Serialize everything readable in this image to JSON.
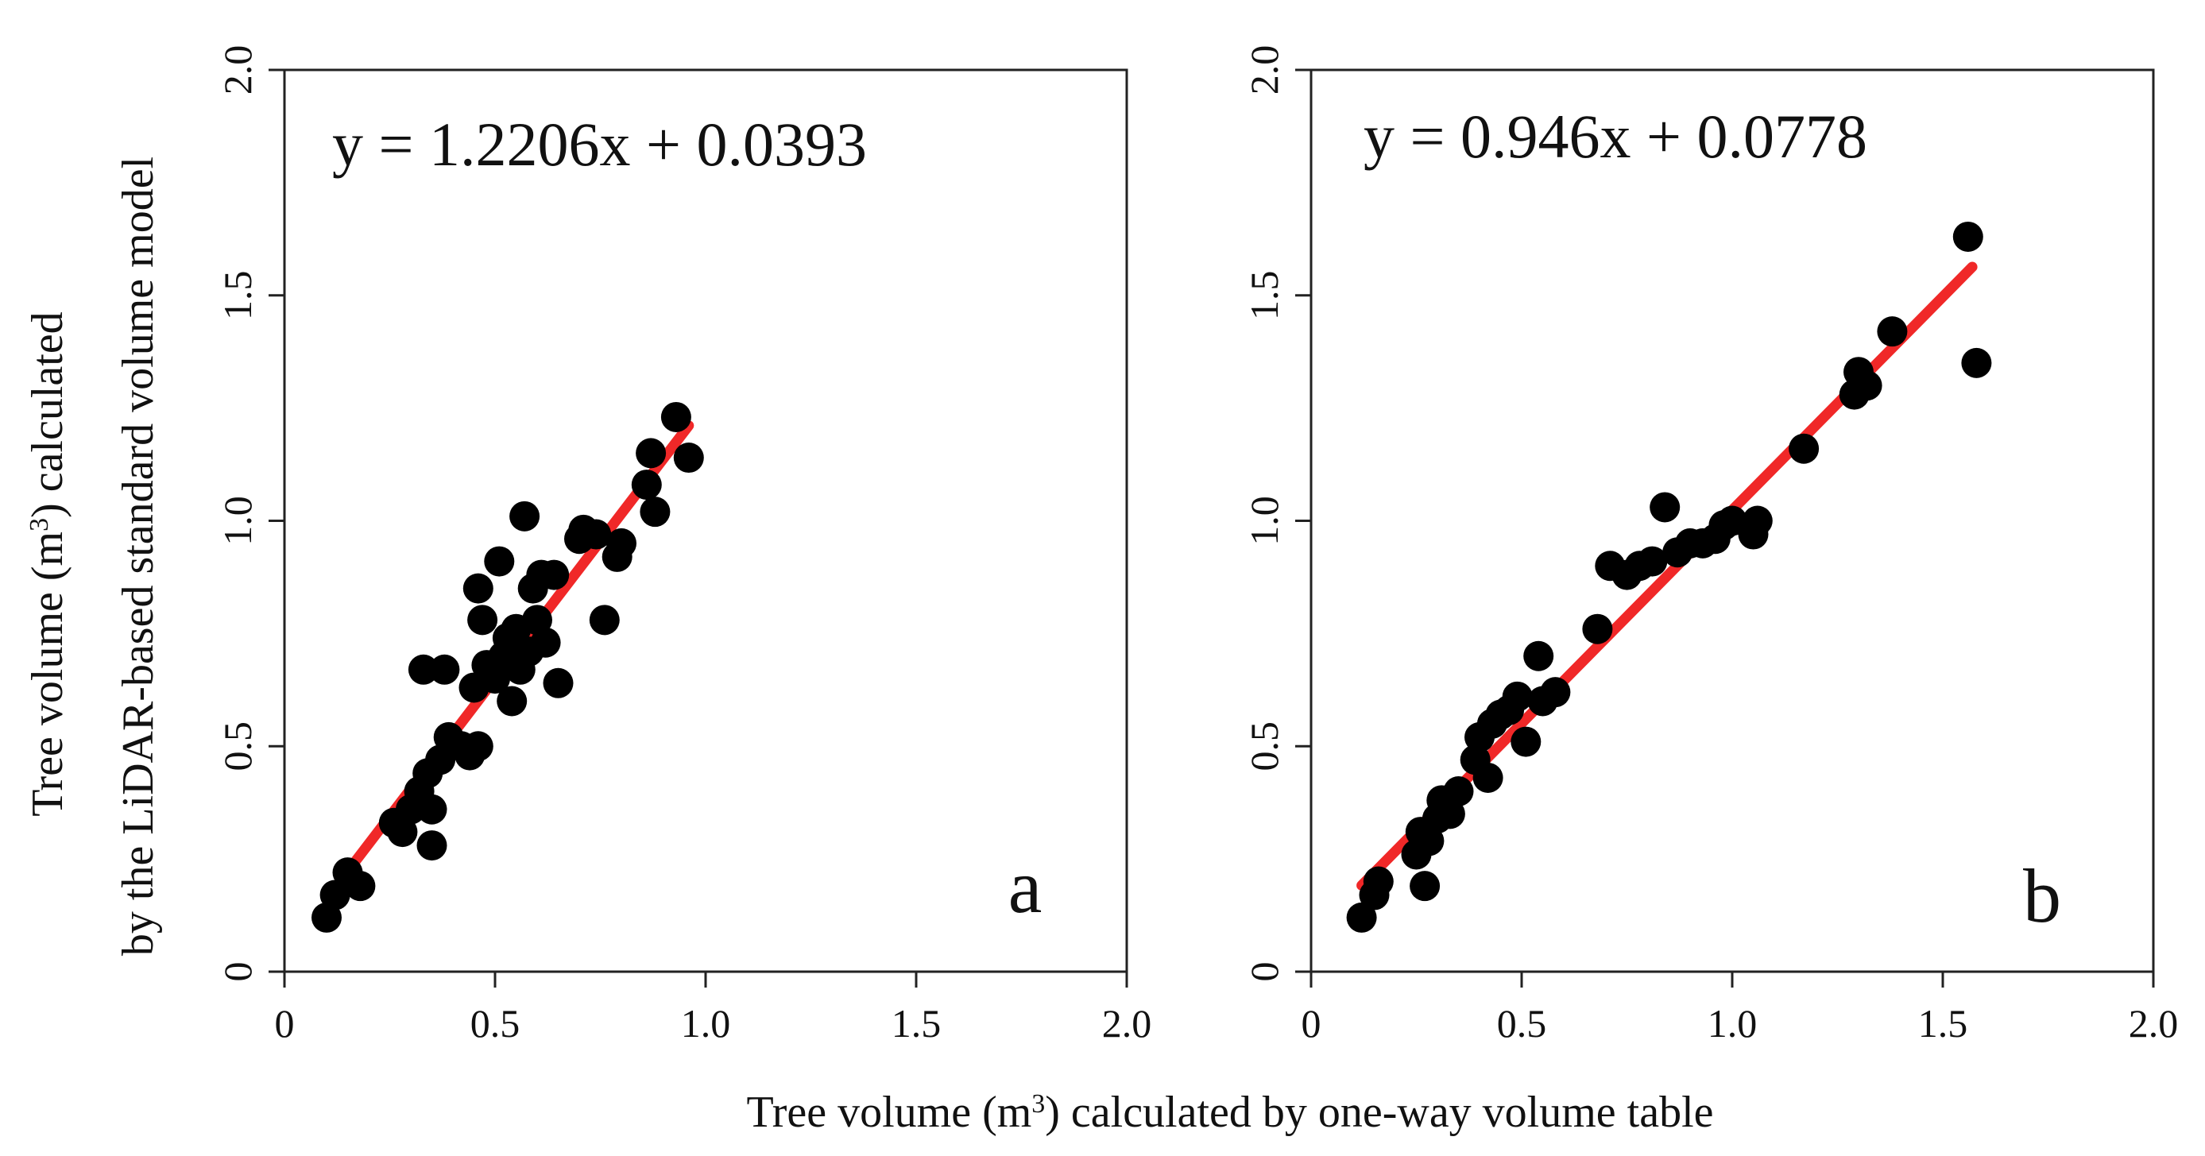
{
  "axes": {
    "xlabel_prefix": "Tree volume (m",
    "xlabel_sup": "3",
    "xlabel_suffix": ") calculated by one-way volume table",
    "ylabel_line1_prefix": "Tree volume (m",
    "ylabel_line1_sup": "3",
    "ylabel_line1_suffix": ") calculated",
    "ylabel_line2": "by the LiDAR-based standard volume model",
    "x_ticks": [
      "0",
      "0.5",
      "1.0",
      "1.5",
      "2.0"
    ],
    "y_ticks": [
      "0",
      "0.5",
      "1.0",
      "1.5",
      "2.0"
    ]
  },
  "colors": {
    "fit_line": "#ee1111",
    "points": "#000000",
    "frame": "#222222"
  },
  "chart_data": [
    {
      "type": "scatter",
      "panel": "a",
      "equation": "y = 1.2206x + 0.0393",
      "fit": {
        "slope": 1.2206,
        "intercept": 0.0393,
        "x_range": [
          0.1,
          0.96
        ]
      },
      "xlim": [
        0,
        2
      ],
      "ylim": [
        0,
        2
      ],
      "grid": false,
      "points": [
        [
          0.1,
          0.12
        ],
        [
          0.12,
          0.17
        ],
        [
          0.15,
          0.22
        ],
        [
          0.18,
          0.19
        ],
        [
          0.26,
          0.33
        ],
        [
          0.28,
          0.31
        ],
        [
          0.3,
          0.36
        ],
        [
          0.32,
          0.4
        ],
        [
          0.33,
          0.67
        ],
        [
          0.34,
          0.44
        ],
        [
          0.35,
          0.36
        ],
        [
          0.35,
          0.28
        ],
        [
          0.37,
          0.47
        ],
        [
          0.38,
          0.67
        ],
        [
          0.39,
          0.52
        ],
        [
          0.42,
          0.5
        ],
        [
          0.44,
          0.48
        ],
        [
          0.45,
          0.63
        ],
        [
          0.46,
          0.5
        ],
        [
          0.46,
          0.85
        ],
        [
          0.47,
          0.78
        ],
        [
          0.48,
          0.68
        ],
        [
          0.5,
          0.65
        ],
        [
          0.51,
          0.91
        ],
        [
          0.52,
          0.7
        ],
        [
          0.53,
          0.74
        ],
        [
          0.54,
          0.6
        ],
        [
          0.55,
          0.76
        ],
        [
          0.56,
          0.67
        ],
        [
          0.57,
          1.01
        ],
        [
          0.58,
          0.71
        ],
        [
          0.59,
          0.85
        ],
        [
          0.6,
          0.78
        ],
        [
          0.61,
          0.88
        ],
        [
          0.62,
          0.73
        ],
        [
          0.64,
          0.88
        ],
        [
          0.65,
          0.64
        ],
        [
          0.7,
          0.96
        ],
        [
          0.71,
          0.98
        ],
        [
          0.74,
          0.97
        ],
        [
          0.76,
          0.78
        ],
        [
          0.79,
          0.92
        ],
        [
          0.8,
          0.95
        ],
        [
          0.86,
          1.08
        ],
        [
          0.87,
          1.15
        ],
        [
          0.88,
          1.02
        ],
        [
          0.93,
          1.23
        ],
        [
          0.96,
          1.14
        ]
      ]
    },
    {
      "type": "scatter",
      "panel": "b",
      "equation": "y = 0.946x + 0.0778",
      "fit": {
        "slope": 0.946,
        "intercept": 0.0778,
        "x_range": [
          0.12,
          1.57
        ]
      },
      "xlim": [
        0,
        2
      ],
      "ylim": [
        0,
        2
      ],
      "grid": false,
      "points": [
        [
          0.12,
          0.12
        ],
        [
          0.15,
          0.17
        ],
        [
          0.16,
          0.2
        ],
        [
          0.25,
          0.26
        ],
        [
          0.26,
          0.31
        ],
        [
          0.27,
          0.19
        ],
        [
          0.28,
          0.29
        ],
        [
          0.3,
          0.34
        ],
        [
          0.31,
          0.38
        ],
        [
          0.33,
          0.35
        ],
        [
          0.35,
          0.4
        ],
        [
          0.39,
          0.47
        ],
        [
          0.4,
          0.52
        ],
        [
          0.42,
          0.43
        ],
        [
          0.43,
          0.55
        ],
        [
          0.45,
          0.57
        ],
        [
          0.47,
          0.58
        ],
        [
          0.49,
          0.61
        ],
        [
          0.51,
          0.51
        ],
        [
          0.54,
          0.7
        ],
        [
          0.55,
          0.6
        ],
        [
          0.58,
          0.62
        ],
        [
          0.68,
          0.76
        ],
        [
          0.71,
          0.9
        ],
        [
          0.75,
          0.88
        ],
        [
          0.78,
          0.9
        ],
        [
          0.81,
          0.91
        ],
        [
          0.84,
          1.03
        ],
        [
          0.87,
          0.93
        ],
        [
          0.9,
          0.95
        ],
        [
          0.93,
          0.95
        ],
        [
          0.96,
          0.96
        ],
        [
          0.98,
          0.99
        ],
        [
          1.0,
          1.0
        ],
        [
          1.05,
          0.97
        ],
        [
          1.06,
          1.0
        ],
        [
          1.17,
          1.16
        ],
        [
          1.29,
          1.28
        ],
        [
          1.3,
          1.33
        ],
        [
          1.32,
          1.3
        ],
        [
          1.38,
          1.42
        ],
        [
          1.56,
          1.63
        ],
        [
          1.58,
          1.35
        ]
      ]
    }
  ]
}
